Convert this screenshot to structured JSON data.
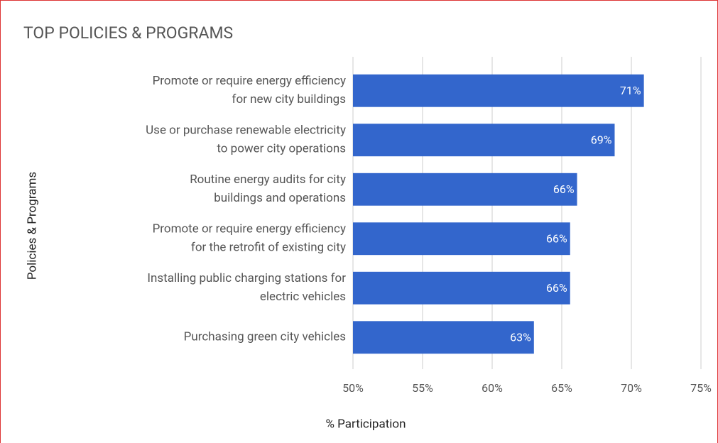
{
  "chart_data": {
    "type": "bar",
    "orientation": "horizontal",
    "title": "TOP POLICIES & PROGRAMS",
    "x_label": "% Participation",
    "y_label": "Policies & Programs",
    "categories": [
      [
        "Promote or require energy efficiency",
        "for new city buildings"
      ],
      [
        "Use or purchase renewable electricity",
        "to power city operations"
      ],
      [
        "Routine energy audits for city",
        "buildings and operations"
      ],
      [
        "Promote or require energy efficiency",
        "for the retrofit of existing city"
      ],
      [
        "Installing public charging stations for",
        "electric vehicles"
      ],
      [
        "Purchasing green city vehicles"
      ]
    ],
    "values": [
      70.9,
      68.8,
      66.1,
      65.6,
      65.6,
      63
    ],
    "value_labels": [
      "71%",
      "69%",
      "66%",
      "66%",
      "66%",
      "63%"
    ],
    "color": "#3366cc",
    "xlim": [
      50,
      75
    ],
    "xticks": [
      {
        "value": 50,
        "label": "50%"
      },
      {
        "value": 55,
        "label": "55%"
      },
      {
        "value": 60,
        "label": "60%"
      },
      {
        "value": 65,
        "label": "65%"
      },
      {
        "value": 70,
        "label": "70%"
      },
      {
        "value": 75,
        "label": "75%"
      }
    ],
    "grid": true
  }
}
